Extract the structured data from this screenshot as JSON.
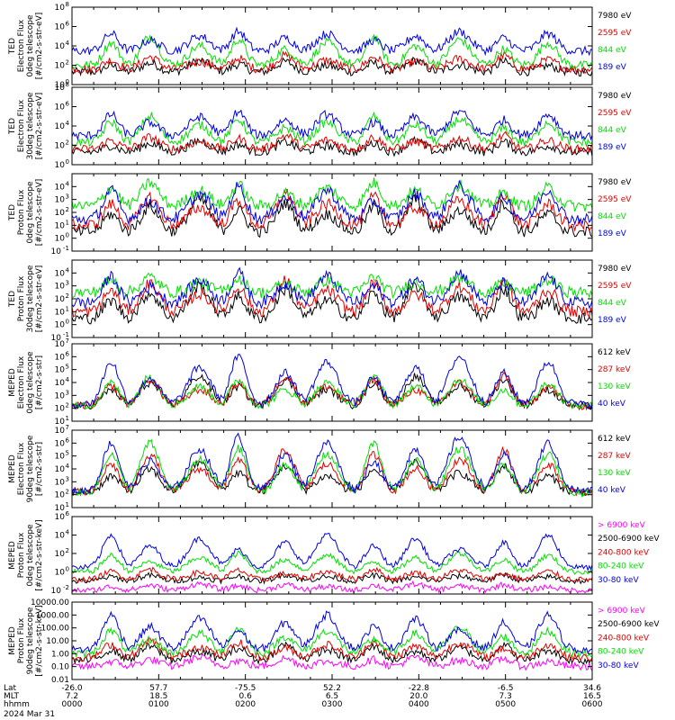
{
  "colors": {
    "black": "#000000",
    "red": "#e00000",
    "green": "#00e000",
    "blue": "#0000e0",
    "magenta": "#ff00ff"
  },
  "chart_data": [
    {
      "type": "line",
      "ylabel": [
        "TED",
        "Electron Flux",
        "0deg telescope",
        "[#/cm2-s-str-eV]"
      ],
      "yscale": "log",
      "ylim": [
        1,
        100000000
      ],
      "yticks": [
        {
          "label": "10",
          "exp": "0",
          "value": 1
        },
        {
          "label": "10",
          "exp": "2",
          "value": 100
        },
        {
          "label": "10",
          "exp": "4",
          "value": 10000
        },
        {
          "label": "10",
          "exp": "6",
          "value": 1000000
        },
        {
          "label": "10",
          "exp": "8",
          "value": 100000000
        }
      ],
      "series": [
        {
          "name": "7980 eV",
          "color": "#000000",
          "base": 20,
          "peak": 300
        },
        {
          "name": "2595 eV",
          "color": "#e00000",
          "base": 40,
          "peak": 1000
        },
        {
          "name": "844 eV",
          "color": "#00e000",
          "base": 100,
          "peak": 100000
        },
        {
          "name": "189 eV",
          "color": "#0000e0",
          "base": 3000,
          "peak": 300000
        }
      ]
    },
    {
      "type": "line",
      "ylabel": [
        "TED",
        "Electron Flux",
        "30deg telescope",
        "[#/cm2-s-str-eV]"
      ],
      "yscale": "log",
      "ylim": [
        1,
        100000000
      ],
      "yticks": [
        {
          "label": "10",
          "exp": "0",
          "value": 1
        },
        {
          "label": "10",
          "exp": "2",
          "value": 100
        },
        {
          "label": "10",
          "exp": "4",
          "value": 10000
        },
        {
          "label": "10",
          "exp": "6",
          "value": 1000000
        },
        {
          "label": "10",
          "exp": "8",
          "value": 100000000
        }
      ],
      "series": [
        {
          "name": "7980 eV",
          "color": "#000000",
          "base": 20,
          "peak": 300
        },
        {
          "name": "2595 eV",
          "color": "#e00000",
          "base": 40,
          "peak": 1000
        },
        {
          "name": "844 eV",
          "color": "#00e000",
          "base": 200,
          "peak": 100000
        },
        {
          "name": "189 eV",
          "color": "#0000e0",
          "base": 1000,
          "peak": 300000
        }
      ]
    },
    {
      "type": "line",
      "ylabel": [
        "TED",
        "Proton Flux",
        "0deg telescope",
        "[#/cm2-s-str-eV]"
      ],
      "yscale": "log",
      "ylim": [
        0.1,
        100000
      ],
      "yticks": [
        {
          "label": "10",
          "exp": "-1",
          "value": 0.1
        },
        {
          "label": "10",
          "exp": "0",
          "value": 1
        },
        {
          "label": "10",
          "exp": "1",
          "value": 10
        },
        {
          "label": "10",
          "exp": "2",
          "value": 100
        },
        {
          "label": "10",
          "exp": "3",
          "value": 1000
        },
        {
          "label": "10",
          "exp": "4",
          "value": 10000
        }
      ],
      "series": [
        {
          "name": "7980 eV",
          "color": "#000000",
          "base": 3,
          "peak": 1000
        },
        {
          "name": "2595 eV",
          "color": "#e00000",
          "base": 10,
          "peak": 3000
        },
        {
          "name": "844 eV",
          "color": "#00e000",
          "base": 300,
          "peak": 20000
        },
        {
          "name": "189 eV",
          "color": "#0000e0",
          "base": 30,
          "peak": 10000
        }
      ]
    },
    {
      "type": "line",
      "ylabel": [
        "TED",
        "Proton Flux",
        "30deg telescope",
        "[#/cm2-s-str-eV]"
      ],
      "yscale": "log",
      "ylim": [
        0.1,
        100000
      ],
      "yticks": [
        {
          "label": "10",
          "exp": "-1",
          "value": 0.1
        },
        {
          "label": "10",
          "exp": "0",
          "value": 1
        },
        {
          "label": "10",
          "exp": "1",
          "value": 10
        },
        {
          "label": "10",
          "exp": "2",
          "value": 100
        },
        {
          "label": "10",
          "exp": "3",
          "value": 1000
        },
        {
          "label": "10",
          "exp": "4",
          "value": 10000
        }
      ],
      "series": [
        {
          "name": "7980 eV",
          "color": "#000000",
          "base": 3,
          "peak": 1000
        },
        {
          "name": "2595 eV",
          "color": "#e00000",
          "base": 10,
          "peak": 3000
        },
        {
          "name": "844 eV",
          "color": "#00e000",
          "base": 300,
          "peak": 5000
        },
        {
          "name": "189 eV",
          "color": "#0000e0",
          "base": 50,
          "peak": 10000
        }
      ]
    },
    {
      "type": "line",
      "ylabel": [
        "MEPED",
        "Electron Flux",
        "0deg telescope",
        "[#/cm2-s-str]"
      ],
      "yscale": "log",
      "ylim": [
        10,
        10000000
      ],
      "yticks": [
        {
          "label": "10",
          "exp": "1",
          "value": 10
        },
        {
          "label": "10",
          "exp": "2",
          "value": 100
        },
        {
          "label": "10",
          "exp": "3",
          "value": 1000
        },
        {
          "label": "10",
          "exp": "4",
          "value": 10000
        },
        {
          "label": "10",
          "exp": "5",
          "value": 100000
        },
        {
          "label": "10",
          "exp": "6",
          "value": 1000000
        },
        {
          "label": "10",
          "exp": "7",
          "value": 10000000
        }
      ],
      "series": [
        {
          "name": "612 keV",
          "color": "#000000",
          "base": 150,
          "peak": 30000
        },
        {
          "name": "287 keV",
          "color": "#e00000",
          "base": 150,
          "peak": 30000
        },
        {
          "name": "130 keV",
          "color": "#00e000",
          "base": 150,
          "peak": 30000
        },
        {
          "name": "40 keV",
          "color": "#0000e0",
          "base": 200,
          "peak": 1000000
        }
      ]
    },
    {
      "type": "line",
      "ylabel": [
        "MEPED",
        "Electron Flux",
        "90deg telescope",
        "[#/cm2-s-str]"
      ],
      "yscale": "log",
      "ylim": [
        10,
        10000000
      ],
      "yticks": [
        {
          "label": "10",
          "exp": "1",
          "value": 10
        },
        {
          "label": "10",
          "exp": "2",
          "value": 100
        },
        {
          "label": "10",
          "exp": "3",
          "value": 1000
        },
        {
          "label": "10",
          "exp": "4",
          "value": 10000
        },
        {
          "label": "10",
          "exp": "5",
          "value": 100000
        },
        {
          "label": "10",
          "exp": "6",
          "value": 1000000
        },
        {
          "label": "10",
          "exp": "7",
          "value": 10000000
        }
      ],
      "series": [
        {
          "name": "612 keV",
          "color": "#000000",
          "base": 150,
          "peak": 30000
        },
        {
          "name": "287 keV",
          "color": "#e00000",
          "base": 150,
          "peak": 300000
        },
        {
          "name": "130 keV",
          "color": "#00e000",
          "base": 150,
          "peak": 1000000
        },
        {
          "name": "40 keV",
          "color": "#0000e0",
          "base": 200,
          "peak": 3000000
        }
      ]
    },
    {
      "type": "line",
      "ylabel": [
        "MEPED",
        "Proton Flux",
        "0deg telescope",
        "[#/cm2-s-str-keV]"
      ],
      "yscale": "log",
      "ylim": [
        0.004,
        1000000
      ],
      "yticks": [
        {
          "label": "10",
          "exp": "-2",
          "value": 0.01
        },
        {
          "label": "10",
          "exp": "0",
          "value": 1
        },
        {
          "label": "10",
          "exp": "2",
          "value": 100
        },
        {
          "label": "10",
          "exp": "4",
          "value": 10000
        },
        {
          "label": "10",
          "exp": "6",
          "value": 1000000
        }
      ],
      "series": [
        {
          "name": "> 6900 keV",
          "color": "#ff00ff",
          "base": 0.01,
          "peak": 0.05
        },
        {
          "name": "2500-6900 keV",
          "color": "#000000",
          "base": 0.1,
          "peak": 0.5
        },
        {
          "name": "240-800 keV",
          "color": "#e00000",
          "base": 0.15,
          "peak": 2
        },
        {
          "name": "80-240 keV",
          "color": "#00e000",
          "base": 1,
          "peak": 100
        },
        {
          "name": "30-80 keV",
          "color": "#0000e0",
          "base": 3,
          "peak": 10000
        }
      ]
    },
    {
      "type": "line",
      "ylabel": [
        "MEPED",
        "Proton Flux",
        "90deg telescope",
        "[#/cm2-s-str-keV]"
      ],
      "yscale": "log",
      "ylim": [
        0.01,
        10000
      ],
      "yticks": [
        {
          "label": "0.01",
          "exp": "",
          "value": 0.01
        },
        {
          "label": "0.10",
          "exp": "",
          "value": 0.1
        },
        {
          "label": "1.00",
          "exp": "",
          "value": 1
        },
        {
          "label": "10.00",
          "exp": "",
          "value": 10
        },
        {
          "label": "100.00",
          "exp": "",
          "value": 100
        },
        {
          "label": "1000.00",
          "exp": "",
          "value": 1000
        },
        {
          "label": "10000.00",
          "exp": "",
          "value": 10000
        }
      ],
      "series": [
        {
          "name": "> 6900 keV",
          "color": "#ff00ff",
          "base": 0.1,
          "peak": 0.5
        },
        {
          "name": "2500-6900 keV",
          "color": "#000000",
          "base": 0.3,
          "peak": 5
        },
        {
          "name": "240-800 keV",
          "color": "#e00000",
          "base": 0.5,
          "peak": 10
        },
        {
          "name": "80-240 keV",
          "color": "#00e000",
          "base": 1,
          "peak": 100
        },
        {
          "name": "30-80 keV",
          "color": "#0000e0",
          "base": 2,
          "peak": 1000
        }
      ]
    }
  ],
  "xaxis": {
    "row_labels": [
      "Lat",
      "MLT",
      "hhmm"
    ],
    "ticks": [
      {
        "lat": "-26.0",
        "mlt": "7.2",
        "hhmm": "0000"
      },
      {
        "lat": "57.7",
        "mlt": "18.5",
        "hhmm": "0100"
      },
      {
        "lat": "-75.5",
        "mlt": "0.6",
        "hhmm": "0200"
      },
      {
        "lat": "52.2",
        "mlt": "6.5",
        "hhmm": "0300"
      },
      {
        "lat": "-22.8",
        "mlt": "20.0",
        "hhmm": "0400"
      },
      {
        "lat": "-6.5",
        "mlt": "7.3",
        "hhmm": "0500"
      },
      {
        "lat": "34.6",
        "mlt": "16.5",
        "hhmm": "0600"
      }
    ],
    "date": "2024 Mar 31"
  }
}
